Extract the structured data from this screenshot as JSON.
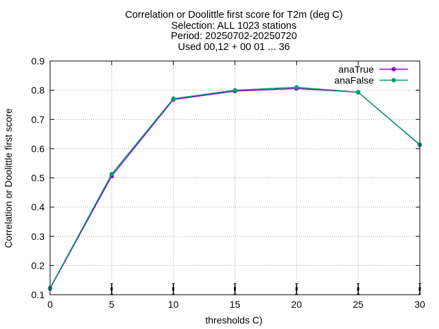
{
  "chart_data": {
    "type": "line",
    "title_lines": [
      "Correlation or Doolittle first score  for T2m (deg C)",
      "Selection: ALL   1023 stations",
      "Period: 20250702-20250720",
      "Used 00,12 + 00 01 ... 36"
    ],
    "xlabel": "thresholds C)",
    "ylabel": "Correlation or Doolittle first score",
    "xlim": [
      0,
      30
    ],
    "ylim": [
      0.1,
      0.9
    ],
    "xticks": [
      0,
      5,
      10,
      15,
      20,
      25,
      30
    ],
    "yticks": [
      0.1,
      0.2,
      0.3,
      0.4,
      0.5,
      0.6,
      0.7,
      0.8,
      0.9
    ],
    "grid": true,
    "legend_position": "top-right",
    "x": [
      0,
      5,
      10,
      15,
      20,
      25,
      30
    ],
    "series": [
      {
        "name": "anaTrue",
        "color": "#9400d3",
        "values": [
          0.121,
          0.506,
          0.768,
          0.797,
          0.806,
          0.793,
          0.613
        ]
      },
      {
        "name": "anaFalse",
        "color": "#009e73",
        "values": [
          0.123,
          0.513,
          0.771,
          0.8,
          0.81,
          0.793,
          0.614
        ]
      }
    ],
    "errorbar_x": [
      5,
      10,
      15,
      20,
      25,
      30
    ],
    "errorbar_y": 0.12,
    "errorbar_halfwidth": 0.018
  }
}
